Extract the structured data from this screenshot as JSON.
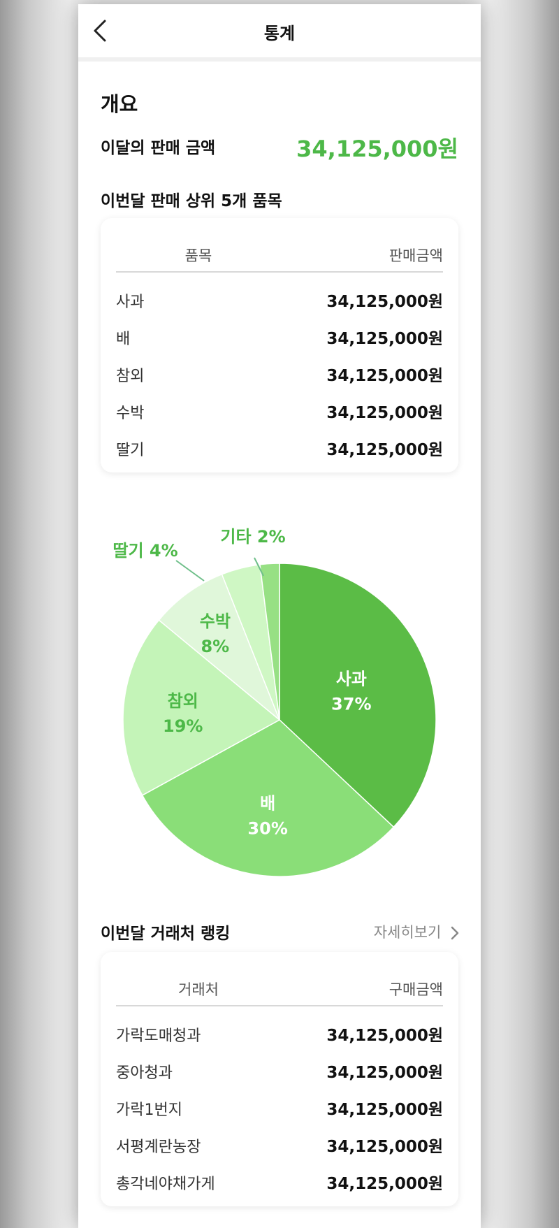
{
  "header": {
    "title": "통계"
  },
  "overview": {
    "title": "개요",
    "sales_label": "이달의 판매 금액",
    "sales_amount": "34,125,000원"
  },
  "top_items": {
    "title": "이번달 판매 상위 5개 품목",
    "col_item": "품목",
    "col_amount": "판매금액",
    "rows": [
      {
        "name": "사과",
        "amount": "34,125,000원"
      },
      {
        "name": "배",
        "amount": "34,125,000원"
      },
      {
        "name": "참외",
        "amount": "34,125,000원"
      },
      {
        "name": "수박",
        "amount": "34,125,000원"
      },
      {
        "name": "딸기",
        "amount": "34,125,000원"
      }
    ]
  },
  "chart_data": {
    "type": "pie",
    "slices": [
      {
        "label": "사과",
        "pct_text": "37%",
        "value": 37,
        "color": "#5bbc46"
      },
      {
        "label": "배",
        "pct_text": "30%",
        "value": 30,
        "color": "#8ade78"
      },
      {
        "label": "참외",
        "pct_text": "19%",
        "value": 19,
        "color": "#c4f4b8"
      },
      {
        "label": "수박",
        "pct_text": "8%",
        "value": 8,
        "color": "#e0f7da"
      },
      {
        "label": "딸기",
        "pct_text": "4%",
        "value": 4,
        "color": "#cff7c4"
      },
      {
        "label": "기타",
        "pct_text": "2%",
        "value": 2,
        "color": "#97e084"
      }
    ],
    "label_colors": {
      "inner_light": "#ffffff",
      "inner_dark": "#4db848"
    }
  },
  "ranking": {
    "title": "이번달 거래처 랭킹",
    "detail_label": "자세히보기",
    "col_vendor": "거래처",
    "col_amount": "구매금액",
    "rows": [
      {
        "name": "가락도매청과",
        "amount": "34,125,000원"
      },
      {
        "name": "중아청과",
        "amount": "34,125,000원"
      },
      {
        "name": "가락1번지",
        "amount": "34,125,000원"
      },
      {
        "name": "서평계란농장",
        "amount": "34,125,000원"
      },
      {
        "name": "총각네야채가게",
        "amount": "34,125,000원"
      }
    ]
  },
  "colors": {
    "accent": "#4db848"
  }
}
